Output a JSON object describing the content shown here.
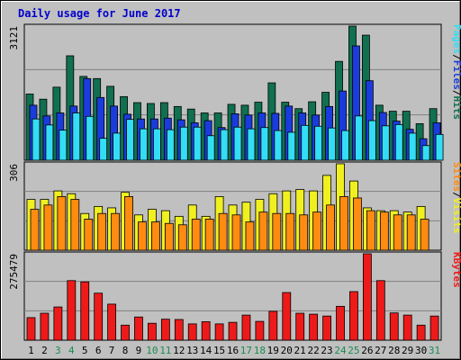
{
  "chart_data": {
    "type": "bar",
    "title": "Daily usage for June 2017",
    "categories": [
      "1",
      "2",
      "3",
      "4",
      "5",
      "6",
      "7",
      "8",
      "9",
      "10",
      "11",
      "12",
      "13",
      "14",
      "15",
      "16",
      "17",
      "18",
      "19",
      "20",
      "21",
      "22",
      "23",
      "24",
      "25",
      "26",
      "27",
      "28",
      "29",
      "30",
      "31"
    ],
    "weekend_days": [
      "3",
      "4",
      "10",
      "11",
      "17",
      "18",
      "24",
      "25",
      "31"
    ],
    "colors": {
      "background": "#c0c0c0",
      "title": "#0000cc",
      "hits": "#107050",
      "files": "#1a3cdc",
      "pages": "#33ddf5",
      "visits": "#f0f020",
      "sites": "#ff8c10",
      "kbytes": "#ee1a1a",
      "weekday_label": "#000000",
      "weekend_label": "#1a8c50"
    },
    "panels": [
      {
        "ymax_label": "3121",
        "ymax": 3121,
        "legend": [
          "Pages",
          "Files",
          "Hits"
        ],
        "series": [
          {
            "name": "Hits",
            "values": [
              1540,
              1420,
              1700,
              2430,
              1950,
              1900,
              1720,
              1480,
              1340,
              1320,
              1340,
              1250,
              1190,
              1100,
              1100,
              1300,
              1280,
              1350,
              1800,
              1350,
              1200,
              1360,
              1580,
              2300,
              3121,
              2910,
              1280,
              1140,
              1140,
              850,
              1200
            ]
          },
          {
            "name": "Files",
            "values": [
              1280,
              1030,
              1100,
              1260,
              1900,
              1460,
              1260,
              1070,
              960,
              960,
              980,
              940,
              870,
              920,
              760,
              1080,
              1050,
              1100,
              1090,
              1260,
              1100,
              1050,
              1250,
              1610,
              2660,
              1850,
              1110,
              910,
              720,
              500,
              870
            ]
          },
          {
            "name": "Pages",
            "values": [
              960,
              820,
              700,
              1100,
              1020,
              510,
              630,
              950,
              730,
              730,
              710,
              770,
              770,
              570,
              710,
              770,
              730,
              760,
              690,
              650,
              810,
              790,
              750,
              690,
              1030,
              920,
              800,
              830,
              630,
              340,
              600
            ]
          }
        ]
      },
      {
        "ymax_label": "306",
        "ymax": 306,
        "legend": [
          "Sites",
          "Visits"
        ],
        "series": [
          {
            "name": "Visits",
            "values": [
              180,
              180,
              210,
              200,
              130,
              155,
              150,
              205,
              125,
              145,
              140,
              120,
              160,
              120,
              190,
              160,
              170,
              180,
              200,
              210,
              215,
              210,
              265,
              306,
              245,
              150,
              140,
              140,
              135,
              155,
              0
            ]
          },
          {
            "name": "Sites",
            "values": [
              145,
              160,
              190,
              180,
              110,
              130,
              130,
              190,
              100,
              100,
              95,
              90,
              110,
              110,
              130,
              125,
              100,
              135,
              130,
              130,
              125,
              135,
              160,
              190,
              185,
              140,
              135,
              125,
              125,
              110,
              0
            ]
          }
        ]
      },
      {
        "ymax_label": "275479",
        "ymax": 275479,
        "legend": [
          "KBytes"
        ],
        "series": [
          {
            "name": "KBytes",
            "values": [
              72000,
              86000,
              106000,
              190000,
              186000,
              150000,
              115000,
              48000,
              74000,
              54000,
              67000,
              66000,
              52000,
              59000,
              52000,
              57000,
              80000,
              60000,
              92000,
              152000,
              86000,
              83000,
              77000,
              108000,
              155000,
              275479,
              190000,
              87000,
              80000,
              48000,
              77000
            ]
          }
        ]
      }
    ]
  }
}
